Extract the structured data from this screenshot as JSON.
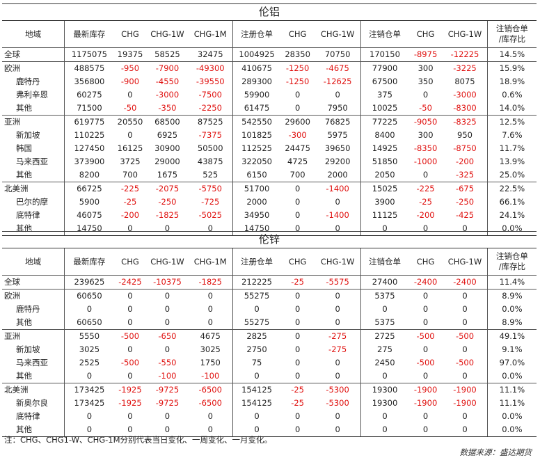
{
  "headers": [
    "地域",
    "最新库存",
    "CHG",
    "CHG-1W",
    "CHG-1M",
    "注册仓单",
    "CHG",
    "CHG-1W",
    "注销仓单",
    "CHG",
    "CHG-1W",
    "注销仓单\n/库存比"
  ],
  "tables": [
    {
      "title": "伦铝",
      "rows": [
        {
          "name": "全球",
          "level": 0,
          "values": [
            "1175075",
            "19375",
            "58525",
            "32475",
            "1004925",
            "28350",
            "70750",
            "170150",
            "-8975",
            "-12225",
            "14.5%"
          ]
        },
        {
          "name": "欧洲",
          "level": 0,
          "values": [
            "488575",
            "-950",
            "-7900",
            "-49300",
            "410675",
            "-1250",
            "-4675",
            "77900",
            "300",
            "-3225",
            "15.9%"
          ]
        },
        {
          "name": "鹿特丹",
          "level": 1,
          "values": [
            "356800",
            "-900",
            "-4550",
            "-39550",
            "289300",
            "-1250",
            "-12625",
            "67500",
            "350",
            "8075",
            "18.9%"
          ]
        },
        {
          "name": "弗利辛恩",
          "level": 1,
          "values": [
            "60275",
            "0",
            "-3000",
            "-7500",
            "59900",
            "0",
            "0",
            "375",
            "0",
            "-3000",
            "0.6%"
          ]
        },
        {
          "name": "其他",
          "level": 1,
          "values": [
            "71500",
            "-50",
            "-350",
            "-2250",
            "61475",
            "0",
            "7950",
            "10025",
            "-50",
            "-8300",
            "14.0%"
          ]
        },
        {
          "name": "亚洲",
          "level": 0,
          "values": [
            "619775",
            "20550",
            "68500",
            "87525",
            "542550",
            "29600",
            "76825",
            "77225",
            "-9050",
            "-8325",
            "12.5%"
          ]
        },
        {
          "name": "新加坡",
          "level": 1,
          "values": [
            "110225",
            "0",
            "6925",
            "-7375",
            "101825",
            "-300",
            "5975",
            "8400",
            "300",
            "950",
            "7.6%"
          ]
        },
        {
          "name": "韩国",
          "level": 1,
          "values": [
            "127450",
            "16125",
            "30900",
            "50500",
            "112525",
            "24475",
            "39650",
            "14925",
            "-8350",
            "-8750",
            "11.7%"
          ]
        },
        {
          "name": "马来西亚",
          "level": 1,
          "values": [
            "373900",
            "3725",
            "29000",
            "43875",
            "322050",
            "4725",
            "29200",
            "51850",
            "-1000",
            "-200",
            "13.9%"
          ]
        },
        {
          "name": "其他",
          "level": 1,
          "values": [
            "8200",
            "700",
            "1675",
            "525",
            "6150",
            "700",
            "2000",
            "2050",
            "0",
            "-325",
            "25.0%"
          ]
        },
        {
          "name": "北美洲",
          "level": 0,
          "values": [
            "66725",
            "-225",
            "-2075",
            "-5750",
            "51700",
            "0",
            "-1400",
            "15025",
            "-225",
            "-675",
            "22.5%"
          ]
        },
        {
          "name": "巴尔的摩",
          "level": 1,
          "values": [
            "5900",
            "-25",
            "-250",
            "-725",
            "2000",
            "0",
            "0",
            "3900",
            "-25",
            "-250",
            "66.1%"
          ]
        },
        {
          "name": "底特律",
          "level": 1,
          "values": [
            "46075",
            "-200",
            "-1825",
            "-5025",
            "34950",
            "0",
            "-1400",
            "11125",
            "-200",
            "-425",
            "24.1%"
          ]
        },
        {
          "name": "其他",
          "level": 1,
          "values": [
            "14750",
            "0",
            "0",
            "0",
            "14750",
            "0",
            "0",
            "0",
            "0",
            "0",
            "0.0%"
          ]
        }
      ]
    },
    {
      "title": "伦锌",
      "rows": [
        {
          "name": "全球",
          "level": 0,
          "values": [
            "239625",
            "-2425",
            "-10375",
            "-1825",
            "212225",
            "-25",
            "-5575",
            "27400",
            "-2400",
            "-2400",
            "11.4%"
          ]
        },
        {
          "name": "欧洲",
          "level": 0,
          "values": [
            "60650",
            "0",
            "0",
            "0",
            "55275",
            "0",
            "0",
            "5375",
            "0",
            "0",
            "8.9%"
          ]
        },
        {
          "name": "鹿特丹",
          "level": 1,
          "values": [
            "0",
            "0",
            "0",
            "0",
            "0",
            "0",
            "0",
            "0",
            "0",
            "0",
            "0.0%"
          ]
        },
        {
          "name": "其他",
          "level": 1,
          "values": [
            "60650",
            "0",
            "0",
            "0",
            "55275",
            "0",
            "0",
            "5375",
            "0",
            "0",
            "8.9%"
          ]
        },
        {
          "name": "亚洲",
          "level": 0,
          "values": [
            "5550",
            "-500",
            "-650",
            "4675",
            "2825",
            "0",
            "-275",
            "2725",
            "-500",
            "-500",
            "49.1%"
          ]
        },
        {
          "name": "新加坡",
          "level": 1,
          "values": [
            "3025",
            "0",
            "0",
            "3025",
            "2750",
            "0",
            "-275",
            "275",
            "0",
            "0",
            "9.1%"
          ]
        },
        {
          "name": "马来西亚",
          "level": 1,
          "values": [
            "2525",
            "-500",
            "-550",
            "1750",
            "75",
            "0",
            "0",
            "2450",
            "-500",
            "-500",
            "97.0%"
          ]
        },
        {
          "name": "其他",
          "level": 1,
          "values": [
            "0",
            "0",
            "-100",
            "-100",
            "0",
            "0",
            "0",
            "0",
            "0",
            "0",
            "0.0%"
          ]
        },
        {
          "name": "北美洲",
          "level": 0,
          "values": [
            "173425",
            "-1925",
            "-9725",
            "-6500",
            "154125",
            "-25",
            "-5300",
            "19300",
            "-1900",
            "-1900",
            "11.1%"
          ]
        },
        {
          "name": "新奥尔良",
          "level": 1,
          "values": [
            "173425",
            "-1925",
            "-9725",
            "-6500",
            "154125",
            "-25",
            "-5300",
            "19300",
            "-1900",
            "-1900",
            "11.1%"
          ]
        },
        {
          "name": "底特律",
          "level": 1,
          "values": [
            "0",
            "0",
            "0",
            "0",
            "0",
            "0",
            "0",
            "0",
            "0",
            "0",
            "0.0%"
          ]
        },
        {
          "name": "其他",
          "level": 1,
          "values": [
            "0",
            "0",
            "0",
            "0",
            "0",
            "0",
            "0",
            "0",
            "0",
            "0",
            "0.0%"
          ]
        }
      ]
    }
  ],
  "note": "注：CHG、CHG1-W、CHG-1M分别代表当日变化、一周变化、一月变化。",
  "source": "数据来源：盛达期货",
  "colors": {
    "negative": "#e0110f",
    "text": "#222222",
    "border": "#555555"
  }
}
